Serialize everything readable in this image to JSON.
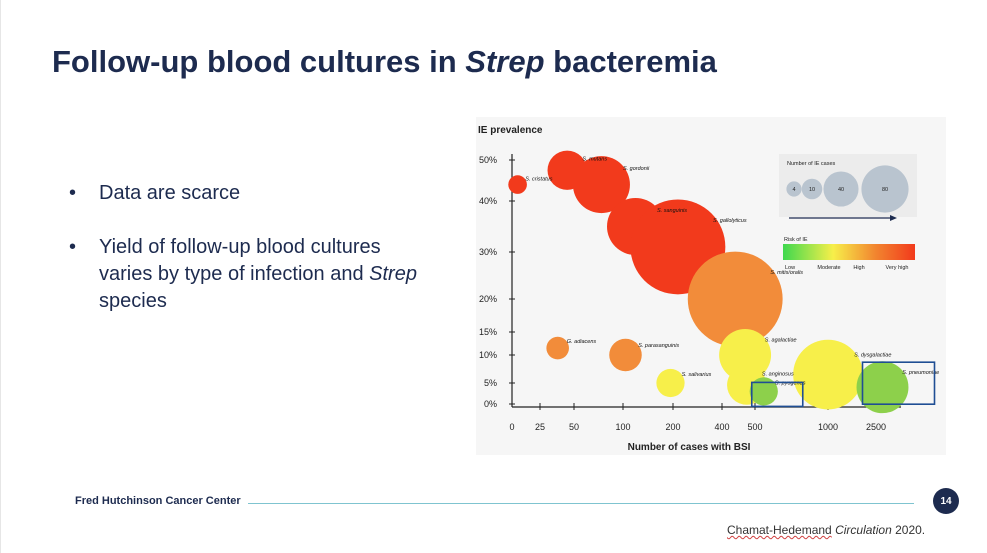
{
  "slide": {
    "title_pre": "Follow-up blood cultures in ",
    "title_em": "Strep",
    "title_post": " bacteremia",
    "bullets": [
      {
        "text": "Data are scarce"
      },
      {
        "pre": "Yield of follow-up blood cultures varies by type of infection and ",
        "em": "Strep",
        "post": " species"
      }
    ],
    "footer_org": "Fred Hutchinson Cancer Center",
    "page_number": "14",
    "citation_author": "Chamat-Hedemand",
    "citation_journal": "Circulation",
    "citation_year": " 2020."
  },
  "chart_data": {
    "type": "scatter",
    "subtype": "bubble",
    "ylabel": "IE prevalence",
    "xlabel": "Number of cases with BSI",
    "x_ticks": [
      "0",
      "25",
      "50",
      "100",
      "200",
      "400",
      "500",
      "1000",
      "2500"
    ],
    "y_ticks": [
      "0%",
      "5%",
      "10%",
      "15%",
      "20%",
      "30%",
      "40%",
      "50%"
    ],
    "scales": "nonlinear piecewise axes; x and y values given in axis units",
    "points": [
      {
        "name": "S. cristatus",
        "x": 5,
        "y": 44,
        "ie_cases": 1,
        "risk": "very high",
        "color": "#f23a1c"
      },
      {
        "name": "S. mutans",
        "x": 45,
        "y": 47.5,
        "ie_cases": 10,
        "risk": "very high",
        "color": "#f23a1c"
      },
      {
        "name": "S. gordonii",
        "x": 78,
        "y": 44,
        "ie_cases": 25,
        "risk": "very high",
        "color": "#f23a1c"
      },
      {
        "name": "S. sanguinis",
        "x": 125,
        "y": 35,
        "ie_cases": 25,
        "risk": "very high",
        "color": "#f23a1c"
      },
      {
        "name": "S. gallolyticus",
        "x": 220,
        "y": 31,
        "ie_cases": 80,
        "risk": "very high",
        "color": "#f23a1c"
      },
      {
        "name": "S. mitis/oralis",
        "x": 440,
        "y": 20,
        "ie_cases": 80,
        "risk": "high",
        "color": "#f28c3a"
      },
      {
        "name": "G. adiacens",
        "x": 38,
        "y": 11.5,
        "ie_cases": 2,
        "risk": "high",
        "color": "#f28c3a"
      },
      {
        "name": "S. parasanguinis",
        "x": 105,
        "y": 10,
        "ie_cases": 6,
        "risk": "high",
        "color": "#f28c3a"
      },
      {
        "name": "S. salivarius",
        "x": 195,
        "y": 5,
        "ie_cases": 4,
        "risk": "moderate",
        "color": "#f7ef4a"
      },
      {
        "name": "S. agalactiae",
        "x": 470,
        "y": 10,
        "ie_cases": 20,
        "risk": "moderate",
        "color": "#f7ef4a"
      },
      {
        "name": "S. anginosus",
        "x": 475,
        "y": 4.5,
        "ie_cases": 10,
        "risk": "moderate",
        "color": "#f7ef4a"
      },
      {
        "name": "S. pyogenes",
        "x": 560,
        "y": 3,
        "ie_cases": 4,
        "risk": "low",
        "color": "#8dd04b"
      },
      {
        "name": "S. dysgalactiae",
        "x": 1000,
        "y": 6.5,
        "ie_cases": 40,
        "risk": "moderate",
        "color": "#f7ef4a"
      },
      {
        "name": "S. pneumoniae",
        "x": 2750,
        "y": 4,
        "ie_cases": 20,
        "risk": "low",
        "color": "#8dd04b"
      }
    ],
    "highlighted": [
      "S. pyogenes",
      "S. pneumoniae"
    ],
    "legend": {
      "size_title": "Number of IE cases",
      "size_values": [
        4,
        10,
        40,
        80
      ],
      "risk_title": "Risk of IE",
      "risk_labels": [
        "Low",
        "Moderate",
        "High",
        "Very high"
      ],
      "gradient": [
        "#3ed84e",
        "#f7ef4a",
        "#f2852f",
        "#f23a1c"
      ]
    }
  }
}
